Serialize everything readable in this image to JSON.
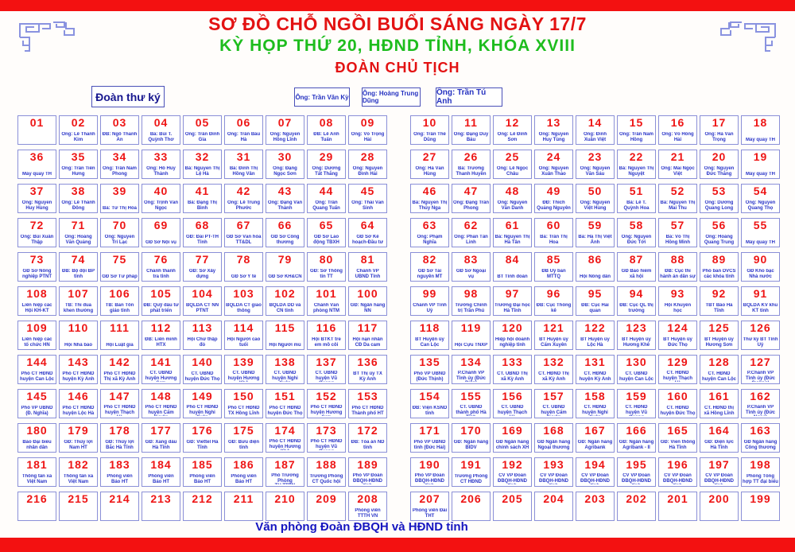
{
  "header": {
    "title_line1": "SƠ ĐỒ CHỖ NGỒI BUỔI SÁNG NGÀY 17/7",
    "title_line2": "KỲ HỌP THỨ 20, HĐND TỈNH, KHÓA XVIII",
    "title_line3": "ĐOÀN CHỦ TỊCH"
  },
  "secretary_box": {
    "label": "Đoàn thư ký"
  },
  "presidium": {
    "members": [
      {
        "label": "Ông: Trần Văn Kỳ"
      },
      {
        "label": "Ông: Hoàng Trung Dũng"
      },
      {
        "label": "Ông: Trần Tú Anh"
      }
    ]
  },
  "footer": {
    "label": "Văn phòng Đoàn ĐBQH và HĐND tỉnh"
  },
  "colors": {
    "accent_red": "#e31212",
    "accent_green": "#1ebd1e",
    "text_blue": "#2a35c8",
    "cell_border_blue": "#8a8fd8",
    "bar_red": "#f31111"
  },
  "grid": {
    "rows": [
      [
        {
          "n": "01",
          "label": ""
        },
        {
          "n": "02",
          "label": "Ông: Lê Thanh Kim"
        },
        {
          "n": "03",
          "label": "ĐB: Ngô Thanh An"
        },
        {
          "n": "04",
          "label": "Bà: Bùi T. Quỳnh Thơ"
        },
        {
          "n": "05",
          "label": "Ông: Trần Đình Gia"
        },
        {
          "n": "06",
          "label": "Ông: Trần Báu Hà"
        },
        {
          "n": "07",
          "label": "Ông: Nguyễn Hồng Lĩnh"
        },
        {
          "n": "08",
          "label": "ĐB: Lê Anh Tuấn"
        },
        {
          "n": "09",
          "label": "Ông: Võ Trọng Hải"
        },
        {
          "n": "10",
          "label": "Ông: Trần Thế Dũng"
        },
        {
          "n": "11",
          "label": "Ông: Đặng Duy Báu"
        },
        {
          "n": "12",
          "label": "Ông: Lê Đình Sơn"
        },
        {
          "n": "13",
          "label": "Ông: Nguyễn Huy Tùng"
        },
        {
          "n": "14",
          "label": "Ông: Đinh Xuân Việt"
        },
        {
          "n": "15",
          "label": "Ông: Trần Nam Hồng"
        },
        {
          "n": "16",
          "label": "Ông: Võ Hồng Hải"
        },
        {
          "n": "17",
          "label": "Ông: Hà Văn Trọng"
        },
        {
          "n": "18",
          "label": "Máy quay TH"
        }
      ],
      [
        {
          "n": "36",
          "label": "Máy quay TH"
        },
        {
          "n": "35",
          "label": "Ông: Trần Tiến Hưng"
        },
        {
          "n": "34",
          "label": "Ông: Trần Nam Phong"
        },
        {
          "n": "33",
          "label": "Ông: Hồ Huy Thành"
        },
        {
          "n": "32",
          "label": "Bà: Nguyễn Thị Lệ Hà"
        },
        {
          "n": "31",
          "label": "Bà: Đinh Thị Hồng Vân"
        },
        {
          "n": "30",
          "label": "Ông: Đặng Ngọc Sơn"
        },
        {
          "n": "29",
          "label": "Ông: Dương Tất Thắng"
        },
        {
          "n": "28",
          "label": "Ông: Nguyễn Đình Hải"
        },
        {
          "n": "27",
          "label": "Ông: Hà Văn Hùng"
        },
        {
          "n": "26",
          "label": "Bà: Trương Thanh Huyền"
        },
        {
          "n": "25",
          "label": "Ông: Lê Ngọc Châu"
        },
        {
          "n": "24",
          "label": "Ông: Nguyễn Xuân Thảo"
        },
        {
          "n": "23",
          "label": "Ông: Nguyễn Văn Sáu"
        },
        {
          "n": "22",
          "label": "Bà: Nguyễn Thị Nguyệt"
        },
        {
          "n": "21",
          "label": "Ông: Mai Ngọc Việt"
        },
        {
          "n": "20",
          "label": "Ông: Nguyễn Đức Thắng"
        },
        {
          "n": "19",
          "label": "Máy quay TH"
        }
      ],
      [
        {
          "n": "37",
          "label": "Ông: Nguyễn Huy Hùng"
        },
        {
          "n": "38",
          "label": "Ông: Lê Thành Đông"
        },
        {
          "n": "39",
          "label": "Bà: Từ Thị Hòa"
        },
        {
          "n": "40",
          "label": "Ông: Trịnh Văn Ngọc"
        },
        {
          "n": "41",
          "label": "Bà: Đặng Thị Bình"
        },
        {
          "n": "42",
          "label": "Ông: Lê Trung Phước"
        },
        {
          "n": "43",
          "label": "Ông: Đặng Văn Thành"
        },
        {
          "n": "44",
          "label": "Ông: Trần Quang Tuấn"
        },
        {
          "n": "45",
          "label": "Ông: Thái Văn Sinh"
        },
        {
          "n": "46",
          "label": "Bà: Nguyễn Thị Thúy Nga"
        },
        {
          "n": "47",
          "label": "Ông: Đặng Trần Phong"
        },
        {
          "n": "48",
          "label": "Ông: Nguyễn Văn Danh"
        },
        {
          "n": "49",
          "label": "ĐĐ: Thích Quảng Nguyên"
        },
        {
          "n": "50",
          "label": "Ông: Nguyễn Việt Hùng"
        },
        {
          "n": "51",
          "label": "Bà: Lê T. Quỳnh Hoa"
        },
        {
          "n": "52",
          "label": "Bà: Nguyễn Thị Mai Thu"
        },
        {
          "n": "53",
          "label": "Ông: Dương Quang Long"
        },
        {
          "n": "54",
          "label": "Ông: Nguyễn Quang Thọ"
        }
      ],
      [
        {
          "n": "72",
          "label": "Ông: Bùi Xuân Thập"
        },
        {
          "n": "71",
          "label": "Ông: Hoàng Văn Quảng"
        },
        {
          "n": "70",
          "label": "Ông: Nguyễn Trí Lạc"
        },
        {
          "n": "69",
          "label": "GĐ Sở Nội vụ"
        },
        {
          "n": "68",
          "label": "GĐ: Đài PT-TH Tỉnh"
        },
        {
          "n": "67",
          "label": "GĐ Sở Văn hóa TT&DL"
        },
        {
          "n": "66",
          "label": "GĐ Sở Công thương"
        },
        {
          "n": "65",
          "label": "GĐ Sở Lao động TBXH"
        },
        {
          "n": "64",
          "label": "GĐ Sở Kế hoạch-Đầu tư"
        },
        {
          "n": "63",
          "label": "Ông: Phạm Nghĩa"
        },
        {
          "n": "62",
          "label": "Ông: Phan Tấn Linh"
        },
        {
          "n": "61",
          "label": "Bà: Nguyễn Thị Hà Tân"
        },
        {
          "n": "60",
          "label": "Bà: Trần Thị Hoa"
        },
        {
          "n": "59",
          "label": "Bà: Hà Thị Việt Ánh"
        },
        {
          "n": "58",
          "label": "Ông: Nguyễn Đức Tới"
        },
        {
          "n": "57",
          "label": "Bà: Võ Thị Hồng Minh"
        },
        {
          "n": "56",
          "label": "Ông: Hoàng Quang Trung"
        },
        {
          "n": "55",
          "label": "Máy quay TH"
        }
      ],
      [
        {
          "n": "73",
          "label": "GĐ Sở Nông nghiệp PTNT"
        },
        {
          "n": "74",
          "label": "ĐB: Bộ đội BP tỉnh"
        },
        {
          "n": "75",
          "label": "GĐ Sở Tư pháp"
        },
        {
          "n": "76",
          "label": "Chánh thanh tra tỉnh"
        },
        {
          "n": "77",
          "label": "GĐ: Sở Xây dựng"
        },
        {
          "n": "78",
          "label": "GĐ Sở Y tế"
        },
        {
          "n": "79",
          "label": "GĐ Sở KH&CN"
        },
        {
          "n": "80",
          "label": "GĐ: Sở Thông tin TT"
        },
        {
          "n": "81",
          "label": "Chánh VP UBND Tỉnh"
        },
        {
          "n": "82",
          "label": "GĐ Sở Tài nguyên MT"
        },
        {
          "n": "83",
          "label": "GĐ Sở Ngoại vụ"
        },
        {
          "n": "84",
          "label": "BT Tỉnh đoàn"
        },
        {
          "n": "85",
          "label": "ĐB Uỷ ban MTTQ"
        },
        {
          "n": "86",
          "label": "Hội Nông dân"
        },
        {
          "n": "87",
          "label": "GĐ Bảo hiểm xã hội"
        },
        {
          "n": "88",
          "label": "ĐB: Cục thi hành án dân sự"
        },
        {
          "n": "89",
          "label": "Phó ban DVCS các khóa tỉnh"
        },
        {
          "n": "90",
          "label": "GĐ Kho bạc Nhà nước"
        }
      ],
      [
        {
          "n": "108",
          "label": "Liên hiệp các Hội KH-KT"
        },
        {
          "n": "107",
          "label": "TB: Thi đua khen thưởng"
        },
        {
          "n": "106",
          "label": "TB: Ban Tôn giáo tỉnh"
        },
        {
          "n": "105",
          "label": "ĐB: Quỹ đầu tư phát triển"
        },
        {
          "n": "104",
          "label": "BQLDA CT NN PTNT"
        },
        {
          "n": "103",
          "label": "BQLDA CT giao thông"
        },
        {
          "n": "102",
          "label": "BQLDA DD và CN tỉnh"
        },
        {
          "n": "101",
          "label": "Chánh Văn phòng NTM"
        },
        {
          "n": "100",
          "label": "GĐ: Ngân hàng NN"
        },
        {
          "n": "99",
          "label": "Chánh VP Tỉnh Uỷ"
        },
        {
          "n": "98",
          "label": "Trường Chính trị Trần Phú"
        },
        {
          "n": "97",
          "label": "Trường Đại học Hà Tĩnh"
        },
        {
          "n": "96",
          "label": "ĐB: Cục Thống kê"
        },
        {
          "n": "95",
          "label": "ĐB: Cục Hải quan"
        },
        {
          "n": "94",
          "label": "ĐB: Cục QL thị trường"
        },
        {
          "n": "93",
          "label": "Hội Khuyến học"
        },
        {
          "n": "92",
          "label": "TBT Báo Hà Tĩnh"
        },
        {
          "n": "91",
          "label": "BQLDA KV khu KT tỉnh"
        }
      ],
      [
        {
          "n": "109",
          "label": "Liên hiệp các tổ chức HN"
        },
        {
          "n": "110",
          "label": "Hội Nhà báo"
        },
        {
          "n": "111",
          "label": "Hội Luật gia"
        },
        {
          "n": "112",
          "label": "ĐB: Liên minh HTX"
        },
        {
          "n": "113",
          "label": "Hội Chữ thập đỏ"
        },
        {
          "n": "114",
          "label": "Hội Người cao tuổi"
        },
        {
          "n": "115",
          "label": "Hội Người mù"
        },
        {
          "n": "116",
          "label": "Hội BTKT trẻ em mồ côi"
        },
        {
          "n": "117",
          "label": "Hội nạn nhân CĐ Da cam"
        },
        {
          "n": "118",
          "label": "BT Huyện ủy Can Lộc"
        },
        {
          "n": "119",
          "label": "Hội Cựu TNXP"
        },
        {
          "n": "120",
          "label": "Hiệp hội doanh nghiệp tỉnh"
        },
        {
          "n": "121",
          "label": "BT Huyện ủy Cẩm Xuyên"
        },
        {
          "n": "122",
          "label": "BT Huyện ủy Lộc Hà"
        },
        {
          "n": "123",
          "label": "BT Huyện ủy Hương Khê"
        },
        {
          "n": "124",
          "label": "BT Huyện ủy Đức Thọ"
        },
        {
          "n": "125",
          "label": "BT Huyện ủy Hương Sơn"
        },
        {
          "n": "126",
          "label": "Thư ký BT Tỉnh Uỷ"
        }
      ],
      [
        {
          "n": "144",
          "label": "Phó CT HĐND huyện Can Lộc"
        },
        {
          "n": "143",
          "label": "Phó CT HĐND huyện Kỳ Anh"
        },
        {
          "n": "142",
          "label": "Phó CT HĐND Thị xã Kỳ Anh"
        },
        {
          "n": "141",
          "label": "CT. UBND huyện Hương Sơn"
        },
        {
          "n": "140",
          "label": "CT. UBND huyện Đức Thọ"
        },
        {
          "n": "139",
          "label": "CT. UBND huyện Hương Khê"
        },
        {
          "n": "138",
          "label": "CT. UBND huyện Nghi Xuân"
        },
        {
          "n": "137",
          "label": "CT. UBND huyện Vũ Quang"
        },
        {
          "n": "136",
          "label": "BT Thị ủy TX Kỳ Anh"
        },
        {
          "n": "135",
          "label": "Phó VP UBND (Đức Thịnh)"
        },
        {
          "n": "134",
          "label": "P.Chánh VP Tỉnh ủy (Đức Diện)"
        },
        {
          "n": "133",
          "label": "CT. UBND Thị xã Kỳ Anh"
        },
        {
          "n": "132",
          "label": "CT. HĐND Thị xã Kỳ Anh"
        },
        {
          "n": "131",
          "label": "CT. HĐND huyện Kỳ Anh"
        },
        {
          "n": "130",
          "label": "CT. UBND huyện Can Lộc"
        },
        {
          "n": "129",
          "label": "CT. HĐND huyện Thạch Hà"
        },
        {
          "n": "128",
          "label": "CT. HĐND huyện Can Lộc"
        },
        {
          "n": "127",
          "label": "P.Chánh VP Tỉnh ủy (Đức Cường)"
        }
      ],
      [
        {
          "n": "145",
          "label": "Phó VP UBND (Đ. Nghĩa)"
        },
        {
          "n": "146",
          "label": "Phó CT HĐND huyện Lộc Hà"
        },
        {
          "n": "147",
          "label": "Phó CT HĐND huyện Thạch Hà"
        },
        {
          "n": "148",
          "label": "Phó CT HĐND huyện Cẩm Xuyên"
        },
        {
          "n": "149",
          "label": "Phó CT HĐND huyện Nghi Xuân"
        },
        {
          "n": "150",
          "label": "Phó CT HĐND TX Hồng Lĩnh"
        },
        {
          "n": "151",
          "label": "Phó CT HĐND huyện Đức Thọ"
        },
        {
          "n": "152",
          "label": "Phó CT HĐND huyện Hương Sơn"
        },
        {
          "n": "153",
          "label": "Phó CT HĐND Thành phố HT"
        },
        {
          "n": "154",
          "label": "ĐB: Viện KSND tỉnh"
        },
        {
          "n": "155",
          "label": "CT. UBND thành phố Hà Tĩnh"
        },
        {
          "n": "156",
          "label": "CT. UBND huyện Thạch Hà"
        },
        {
          "n": "157",
          "label": "CT. UBND huyện Cẩm Xuyên"
        },
        {
          "n": "158",
          "label": "CT. HĐND huyện Nghi Xuân"
        },
        {
          "n": "159",
          "label": "CT. HĐND huyện Vũ Quang"
        },
        {
          "n": "160",
          "label": "CT. HĐND huyện Đức Thọ"
        },
        {
          "n": "161",
          "label": "CT. HĐND thị xã Hồng Lĩnh"
        },
        {
          "n": "162",
          "label": "P.Chánh VP Tỉnh ủy (Đức Ngọc)"
        }
      ],
      [
        {
          "n": "180",
          "label": "Báo Đại biểu nhân dân"
        },
        {
          "n": "179",
          "label": "GĐ: Thủy lợi Nam HT"
        },
        {
          "n": "178",
          "label": "GĐ: Thủy lợi Bắc Hà Tĩnh"
        },
        {
          "n": "177",
          "label": "GĐ: Xăng dầu Hà Tĩnh"
        },
        {
          "n": "176",
          "label": "GĐ: Viettel Hà Tĩnh"
        },
        {
          "n": "175",
          "label": "GĐ: Bưu điện tỉnh"
        },
        {
          "n": "174",
          "label": "Phó CT HĐND huyện Hương Khê"
        },
        {
          "n": "173",
          "label": "Phó CT HĐND huyện Vũ Quang"
        },
        {
          "n": "172",
          "label": "ĐB: Tòa án ND tỉnh"
        },
        {
          "n": "171",
          "label": "Phó VP UBND tỉnh (Đức Hải)"
        },
        {
          "n": "170",
          "label": "GĐ: Ngân hàng BIDV"
        },
        {
          "n": "169",
          "label": "GĐ Ngân hàng chính sách XH"
        },
        {
          "n": "168",
          "label": "GĐ Ngân hàng Ngoại thương"
        },
        {
          "n": "167",
          "label": "GĐ: Ngân hàng Agribank"
        },
        {
          "n": "166",
          "label": "GĐ: Ngân hàng Agribank - II"
        },
        {
          "n": "165",
          "label": "GĐ: Viễn thông Hà Tĩnh"
        },
        {
          "n": "164",
          "label": "GĐ: Điện lực Hà Tĩnh"
        },
        {
          "n": "163",
          "label": "GĐ Ngân hàng Công thương"
        }
      ],
      [
        {
          "n": "181",
          "label": "Thông tấn xã Việt Nam"
        },
        {
          "n": "182",
          "label": "Thông tấn xã Việt Nam"
        },
        {
          "n": "183",
          "label": "Phóng viên Báo HT"
        },
        {
          "n": "184",
          "label": "Phóng viên Báo HT"
        },
        {
          "n": "185",
          "label": "Phóng viên Báo HT"
        },
        {
          "n": "186",
          "label": "Phóng viên Báo HT"
        },
        {
          "n": "187",
          "label": "Phó Trưởng Phòng TH.TTĐN"
        },
        {
          "n": "188",
          "label": "Trưởng Phòng CT Quốc hội"
        },
        {
          "n": "189",
          "label": "Phó VP Đoàn ĐBQH-HĐND tỉnh"
        },
        {
          "n": "190",
          "label": "Phó VP Đoàn ĐBQH-HĐND tỉnh"
        },
        {
          "n": "191",
          "label": "Trưởng Phòng CT HĐND"
        },
        {
          "n": "192",
          "label": "CV VP Đoàn ĐBQH-HĐND tỉnh"
        },
        {
          "n": "193",
          "label": "CV VP Đoàn ĐBQH-HĐND tỉnh"
        },
        {
          "n": "194",
          "label": "CV VP Đoàn ĐBQH-HĐND tỉnh"
        },
        {
          "n": "195",
          "label": "CV VP Đoàn ĐBQH-HĐND tỉnh"
        },
        {
          "n": "196",
          "label": "CV VP Đoàn ĐBQH-HĐND tỉnh"
        },
        {
          "n": "197",
          "label": "CV VP Đoàn ĐBQH-HĐND tỉnh"
        },
        {
          "n": "198",
          "label": "Phòng Tổng hợp TT đại biểu"
        }
      ],
      [
        {
          "n": "216",
          "label": ""
        },
        {
          "n": "215",
          "label": ""
        },
        {
          "n": "214",
          "label": ""
        },
        {
          "n": "213",
          "label": ""
        },
        {
          "n": "212",
          "label": ""
        },
        {
          "n": "211",
          "label": ""
        },
        {
          "n": "210",
          "label": ""
        },
        {
          "n": "209",
          "label": ""
        },
        {
          "n": "208",
          "label": "Phóng viên TTTH VN"
        },
        {
          "n": "207",
          "label": "Phóng viên Đài THT"
        },
        {
          "n": "206",
          "label": ""
        },
        {
          "n": "205",
          "label": ""
        },
        {
          "n": "204",
          "label": ""
        },
        {
          "n": "203",
          "label": ""
        },
        {
          "n": "202",
          "label": ""
        },
        {
          "n": "201",
          "label": ""
        },
        {
          "n": "200",
          "label": ""
        },
        {
          "n": "199",
          "label": ""
        }
      ]
    ]
  }
}
